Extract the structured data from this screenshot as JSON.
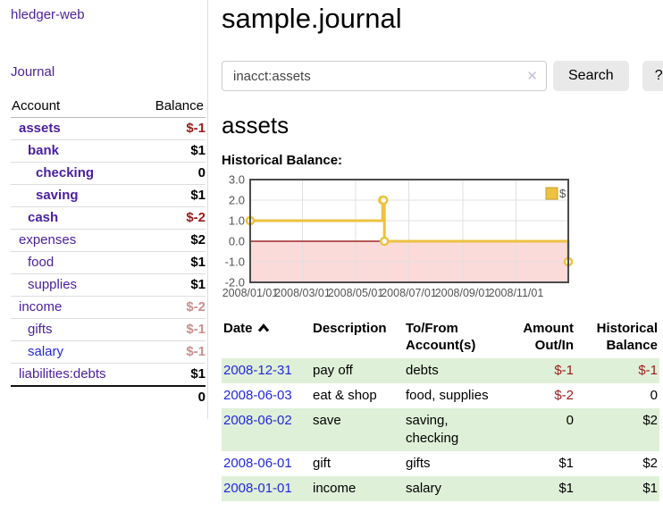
{
  "sidebar": {
    "app_title": "hledger-web",
    "journal_link": "Journal",
    "accounts_header": {
      "account": "Account",
      "balance": "Balance"
    },
    "accounts": [
      {
        "name": "assets",
        "depth": 1,
        "balance": "$-1",
        "bold": true
      },
      {
        "name": "bank",
        "depth": 2,
        "balance": "$1",
        "bold": true
      },
      {
        "name": "checking",
        "depth": 3,
        "balance": "0",
        "bold": true
      },
      {
        "name": "saving",
        "depth": 3,
        "balance": "$1",
        "bold": true
      },
      {
        "name": "cash",
        "depth": 2,
        "balance": "$-2",
        "bold": true
      },
      {
        "name": "expenses",
        "depth": 1,
        "balance": "$2",
        "bold": false
      },
      {
        "name": "food",
        "depth": 2,
        "balance": "$1",
        "bold": false
      },
      {
        "name": "supplies",
        "depth": 2,
        "balance": "$1",
        "bold": false
      },
      {
        "name": "income",
        "depth": 1,
        "balance": "$-2",
        "bold": false
      },
      {
        "name": "gifts",
        "depth": 2,
        "balance": "$-1",
        "bold": false
      },
      {
        "name": "salary",
        "depth": 2,
        "balance": "$-1",
        "bold": false,
        "blue": true
      },
      {
        "name": "liabilities:debts",
        "depth": 1,
        "balance": "$1",
        "bold": false
      }
    ],
    "total": "0"
  },
  "main": {
    "title": "sample.journal",
    "search": {
      "value": "inacct:assets",
      "clear_icon": "✕",
      "button_label": "Search",
      "help_label": "?"
    },
    "account_heading": "assets",
    "chart_label": "Historical Balance:"
  },
  "register": {
    "columns": [
      "Date",
      "Description",
      "To/From Account(s)",
      "Amount Out/In",
      "Historical Balance"
    ],
    "rows": [
      {
        "date": "2008-12-31",
        "description": "pay off",
        "accounts": "debts",
        "amount": "$-1",
        "balance": "$-1"
      },
      {
        "date": "2008-06-03",
        "description": "eat & shop",
        "accounts": "food, supplies",
        "amount": "$-2",
        "balance": "0"
      },
      {
        "date": "2008-06-02",
        "description": "save",
        "accounts": "saving, checking",
        "amount": "0",
        "balance": "$2"
      },
      {
        "date": "2008-06-01",
        "description": "gift",
        "accounts": "gifts",
        "amount": "$1",
        "balance": "$2"
      },
      {
        "date": "2008-01-01",
        "description": "income",
        "accounts": "salary",
        "amount": "$1",
        "balance": "$1"
      }
    ]
  },
  "chart_data": {
    "type": "line",
    "step": true,
    "title": "Historical Balance:",
    "series": [
      {
        "name": "$",
        "points": [
          [
            "2008-01-01",
            1
          ],
          [
            "2008-06-01",
            2
          ],
          [
            "2008-06-02",
            2
          ],
          [
            "2008-06-03",
            0
          ],
          [
            "2008-12-31",
            -1
          ]
        ]
      }
    ],
    "x_ticks": [
      "2008/01/01",
      "2008/03/01",
      "2008/05/01",
      "2008/07/01",
      "2008/09/01",
      "2008/11/01"
    ],
    "y_ticks": [
      "3.0",
      "2.0",
      "1.0",
      "0.0",
      "-1.0",
      "-2.0"
    ],
    "ylim": [
      -2,
      3
    ],
    "x_range": [
      "2008-01-01",
      "2008-12-31"
    ],
    "legend": "$",
    "legend_position": "top-right",
    "grid": true
  },
  "colors": {
    "link_purple": "#4a1f9e",
    "link_blue": "#2228dd",
    "negative_strong": "#9e1a1a",
    "negative_faded": "#c98f8f",
    "row_stripe_green": "#dff0d8",
    "chart_line_gold": "#edc240",
    "chart_negative_region": "#fbdada",
    "chart_zero_line": "#8b0000",
    "chart_border": "#4a4a4a",
    "chart_grid": "#e0e0e0",
    "chart_text": "#545454"
  }
}
